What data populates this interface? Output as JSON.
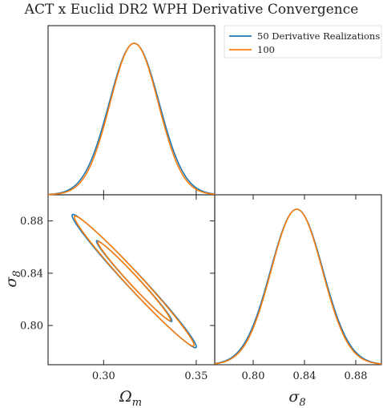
{
  "chart_data": {
    "type": "triangle-corner",
    "title": "ACT x Euclid DR2 WPH Derivative Convergence",
    "parameters": [
      {
        "name": "Omega_m",
        "label": "Ω",
        "label_sub": "m",
        "mean": 0.3165,
        "range": [
          0.27,
          0.36
        ],
        "ticks": [
          0.3,
          0.35
        ],
        "tick_labels": [
          "0.30",
          "0.35"
        ]
      },
      {
        "name": "sigma_8",
        "label": "σ",
        "label_sub": "8",
        "mean": 0.834,
        "range": [
          0.77,
          0.9
        ],
        "ticks": [
          0.8,
          0.84,
          0.88
        ],
        "tick_labels": [
          "0.80",
          "0.84",
          "0.88"
        ]
      }
    ],
    "legend": {
      "placement": "top-right",
      "entries": [
        "50 Derivative Realizations",
        "100"
      ]
    },
    "series": [
      {
        "name": "50 Derivative Realizations",
        "color": "#1f77b4",
        "sigma_Omega_m": 0.0135,
        "sigma_sigma_8": 0.0205,
        "correlation": -0.985
      },
      {
        "name": "100",
        "color": "#ff7f0e",
        "sigma_Omega_m": 0.013,
        "sigma_sigma_8": 0.02,
        "correlation": -0.985
      }
    ]
  }
}
